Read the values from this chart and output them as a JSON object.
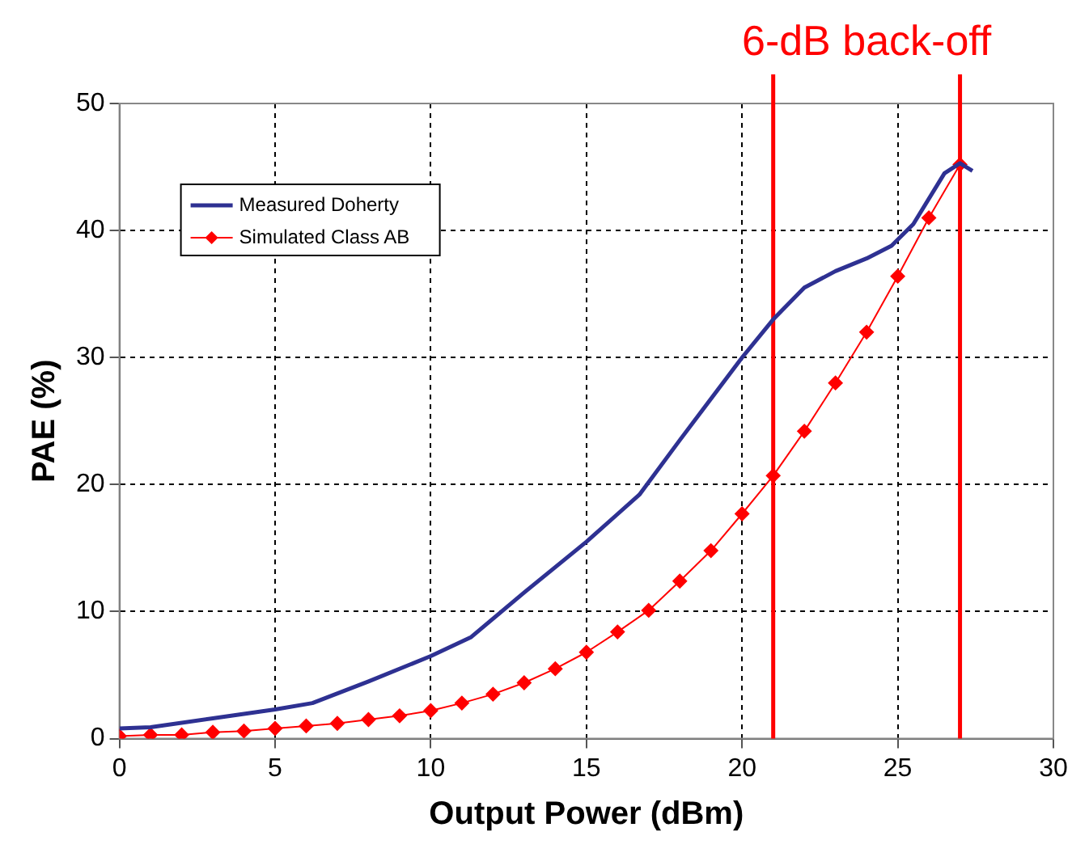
{
  "chart_data": {
    "type": "line",
    "xlabel": "Output Power (dBm)",
    "ylabel": "PAE (%)",
    "annotations": [
      "6-dB back-off"
    ],
    "xlim": [
      0,
      30
    ],
    "xticks": [
      0,
      5,
      10,
      15,
      20,
      25,
      30
    ],
    "ylim": [
      0,
      50
    ],
    "yticks": [
      0,
      10,
      20,
      30,
      40,
      50
    ],
    "grid": true,
    "legend": "top left",
    "line_style": "solid",
    "series": [
      {
        "name": "Measured Doherty",
        "color": "#2e3192",
        "marker": "none",
        "x": [
          0,
          1,
          3,
          5,
          6.2,
          8,
          10,
          11.3,
          13,
          15,
          16.7,
          18,
          20,
          21,
          22,
          23,
          24,
          24.8,
          25.5,
          26.5,
          27,
          27.4
        ],
        "values": [
          0.8,
          0.9,
          1.6,
          2.3,
          2.8,
          4.5,
          6.5,
          8.0,
          11.5,
          15.5,
          19.2,
          23.5,
          30,
          33,
          35.5,
          36.8,
          37.8,
          38.8,
          40.5,
          44.5,
          45.3,
          44.7
        ]
      },
      {
        "name": "Simulated Class AB",
        "color": "#ff0000",
        "marker": "diamond",
        "x": [
          0,
          1,
          2,
          3,
          4,
          5,
          6,
          7,
          8,
          9,
          10,
          11,
          12,
          13,
          14,
          15,
          16,
          17,
          18,
          19,
          20,
          21,
          22,
          23,
          24,
          25,
          26,
          27
        ],
        "values": [
          0.2,
          0.3,
          0.3,
          0.5,
          0.6,
          0.8,
          1.0,
          1.2,
          1.5,
          1.8,
          2.2,
          2.8,
          3.5,
          4.4,
          5.5,
          6.8,
          8.4,
          10.1,
          12.4,
          14.8,
          17.7,
          20.7,
          24.2,
          28.0,
          32.0,
          36.4,
          41.0,
          45.2
        ]
      }
    ],
    "ref_lines": [
      {
        "axis": "x",
        "value": 21,
        "color": "#ff0000"
      },
      {
        "axis": "x",
        "value": 27,
        "color": "#ff0000"
      }
    ]
  }
}
